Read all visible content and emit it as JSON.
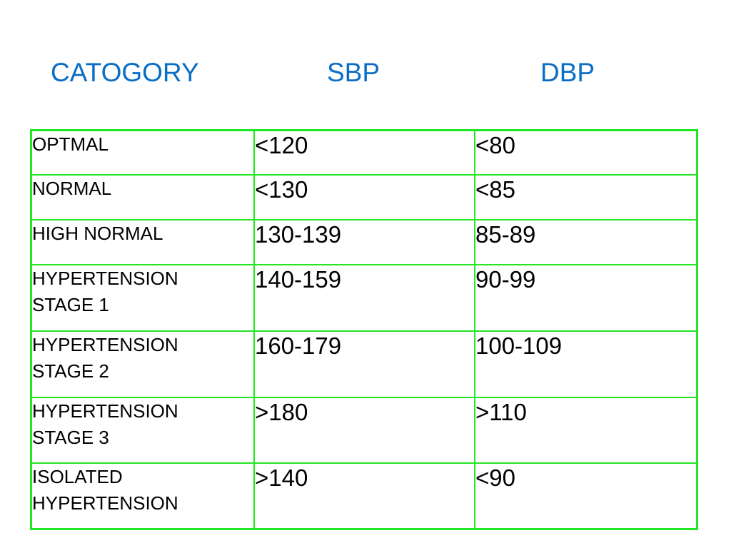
{
  "header": {
    "category": "CATOGORY",
    "sbp": "SBP",
    "dbp": "DBP"
  },
  "rows": [
    {
      "category": [
        "OPTMAL"
      ],
      "sbp": "<120",
      "dbp": "<80"
    },
    {
      "category": [
        "NORMAL"
      ],
      "sbp": "<130",
      "dbp": "<85"
    },
    {
      "category": [
        "HIGH NORMAL"
      ],
      "sbp": "130-139",
      "dbp": "85-89"
    },
    {
      "category": [
        "HYPERTENSION",
        "STAGE 1"
      ],
      "sbp": "140-159",
      "dbp": "90-99"
    },
    {
      "category": [
        "HYPERTENSION",
        "STAGE 2"
      ],
      "sbp": "160-179",
      "dbp": "100-109"
    },
    {
      "category": [
        "HYPERTENSION",
        "STAGE 3"
      ],
      "sbp": ">180",
      "dbp": ">110"
    },
    {
      "category": [
        "ISOLATED",
        "HYPERTENSION"
      ],
      "sbp": ">140",
      "dbp": "<90"
    }
  ],
  "colors": {
    "header_text": "#0a6ec4",
    "table_border": "#22e622",
    "cell_text": "#000000",
    "background": "#ffffff"
  }
}
